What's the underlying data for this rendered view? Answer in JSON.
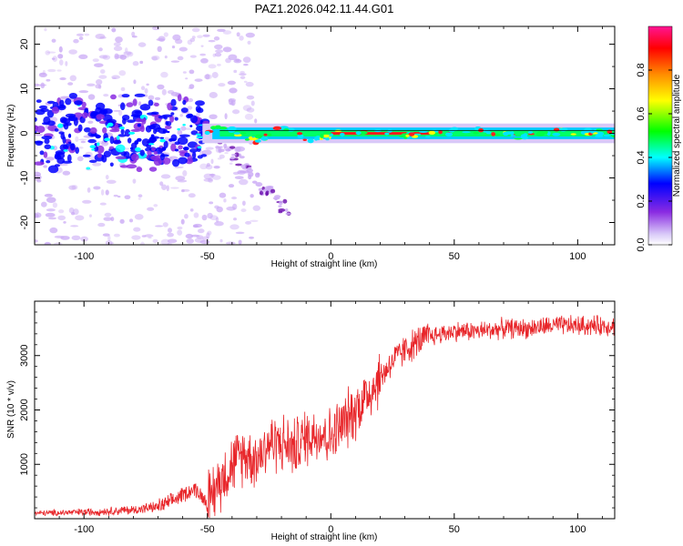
{
  "title": "PAZ1.2026.042.11.44.G01",
  "chart_data": [
    {
      "type": "heatmap",
      "subtype": "spectrogram",
      "xlabel": "Height of straight line (km)",
      "ylabel": "Frequency (Hz)",
      "xlim": [
        -120,
        115
      ],
      "ylim": [
        -25,
        24
      ],
      "xticks": [
        -100,
        -50,
        0,
        50,
        100
      ],
      "yticks": [
        -20,
        -10,
        0,
        10,
        20
      ],
      "colorbar": {
        "label": "Normalized spectral amplitude",
        "range": [
          0,
          1
        ],
        "ticks": [
          0.0,
          0.2,
          0.4,
          0.6,
          0.8
        ],
        "tick_labels": [
          "0.0",
          "0.2",
          "0.4",
          "0.6",
          "0.8"
        ],
        "colormap": [
          "#e6e6fa",
          "#8a2be2",
          "#0000ff",
          "#00ffff",
          "#00ff00",
          "#ffff00",
          "#ff8c00",
          "#ff0000",
          "#ff1493"
        ]
      },
      "description_of_content": "Narrow high-amplitude tone near 0 Hz from about -50 km upward; scattered low-amplitude energy spread over -25 to 24 Hz for heights below about -50 km"
    },
    {
      "type": "line",
      "xlabel": "Height of straight line (km)",
      "ylabel": "SNR (10 * v/v)",
      "xlim": [
        -120,
        115
      ],
      "ylim": [
        0,
        4000
      ],
      "xticks": [
        -100,
        -50,
        0,
        50,
        100
      ],
      "yticks": [
        1000,
        2000,
        3000
      ],
      "color": "#e8262a",
      "series": [
        {
          "name": "SNR",
          "x": [
            -120,
            -100,
            -90,
            -80,
            -70,
            -65,
            -60,
            -55,
            -50,
            -45,
            -40,
            -35,
            -30,
            -25,
            -20,
            -15,
            -10,
            -5,
            0,
            5,
            10,
            15,
            20,
            25,
            30,
            35,
            40,
            50,
            60,
            70,
            80,
            90,
            100,
            110,
            115
          ],
          "y": [
            100,
            120,
            140,
            160,
            220,
            300,
            450,
            550,
            300,
            700,
            1000,
            1200,
            1100,
            1400,
            1400,
            1300,
            1500,
            1600,
            1500,
            1750,
            2000,
            2300,
            2600,
            2900,
            3100,
            3250,
            3350,
            3450,
            3450,
            3500,
            3500,
            3550,
            3550,
            3550,
            3550
          ]
        }
      ]
    }
  ]
}
